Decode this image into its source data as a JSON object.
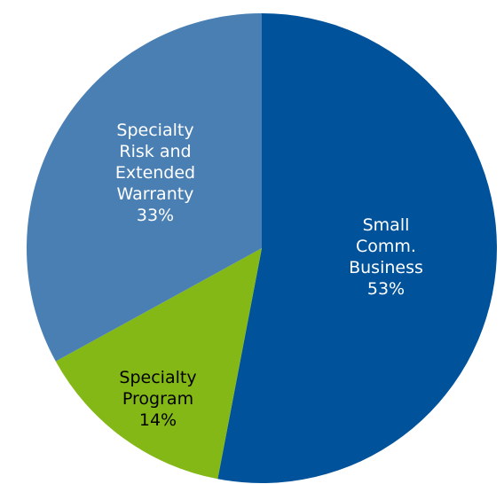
{
  "chart_data": {
    "type": "pie",
    "categories": [
      "Small Comm. Business",
      "Specialty Program",
      "Specialty Risk and Extended Warranty"
    ],
    "values": [
      53,
      14,
      33
    ],
    "value_labels": [
      "53%",
      "14%",
      "33%"
    ],
    "colors": [
      "#00529b",
      "#84b817",
      "#4a7fb4"
    ]
  }
}
